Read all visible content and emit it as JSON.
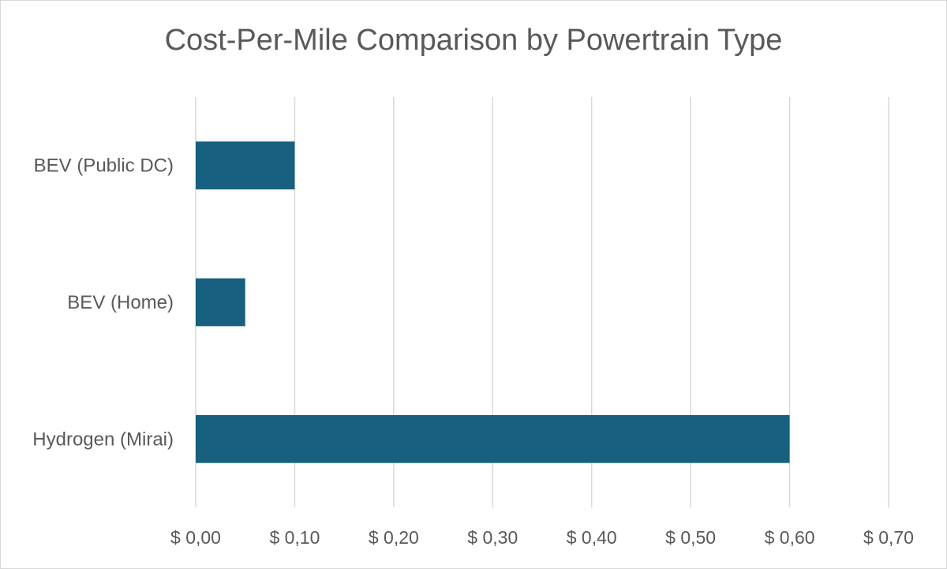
{
  "chart_data": {
    "type": "bar",
    "orientation": "horizontal",
    "title": "Cost-Per-Mile Comparison by Powertrain Type",
    "categories": [
      "BEV (Public DC)",
      "BEV (Home)",
      "Hydrogen (Mirai)"
    ],
    "values": [
      0.1,
      0.05,
      0.6
    ],
    "xlim": [
      0,
      0.7
    ],
    "x_ticks": [
      0.0,
      0.1,
      0.2,
      0.3,
      0.4,
      0.5,
      0.6,
      0.7
    ],
    "x_tick_labels": [
      "$ 0,00",
      "$ 0,10",
      "$ 0,20",
      "$ 0,30",
      "$ 0,40",
      "$ 0,50",
      "$ 0,60",
      "$ 0,70"
    ],
    "grid": true,
    "legend": "none",
    "colors": {
      "bar": "#17607f",
      "grid": "#d9d9d9",
      "text": "#595959"
    }
  }
}
